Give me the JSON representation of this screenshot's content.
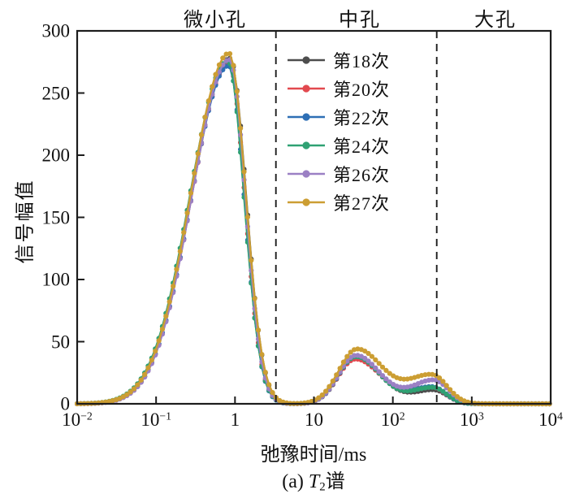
{
  "figure": {
    "region_labels": [
      {
        "label": "微小孔"
      },
      {
        "label": "中孔"
      },
      {
        "label": "大孔"
      }
    ],
    "y_axis_label": "信号幅值",
    "x_axis_label": "弛豫时间/ms",
    "caption": {
      "pre": "(a) ",
      "var": "T",
      "sub": "2",
      "post": "谱"
    }
  },
  "chart_data": {
    "type": "line",
    "title": "",
    "xlabel": "弛豫时间/ms",
    "ylabel": "信号幅值",
    "x_axis": {
      "scale": "log",
      "unit": "ms",
      "min": 0.01,
      "max": 10000,
      "tick_labels": [
        "10^-2",
        "10^-1",
        "1",
        "10",
        "10^2",
        "10^3",
        "10^4"
      ]
    },
    "y_axis": {
      "min": 0,
      "max": 300,
      "ticks": [
        0,
        50,
        100,
        150,
        200,
        250,
        300
      ]
    },
    "grid": false,
    "legend_position": "upper-center-between-boundaries",
    "pore_region_boundaries_ms": [
      3.3,
      360
    ],
    "boundary_line_style": "black-dashed-vertical",
    "marker": "filled-circle",
    "series": [
      {
        "name": "第18次",
        "color": "#4d4d4d",
        "peaks": [
          {
            "t2_ms": 0.86,
            "amplitude": 278,
            "sigma_left": 0.48,
            "sigma_right": 0.205
          },
          {
            "t2_ms": 34,
            "amplitude": 37,
            "sigma_left": 0.22,
            "sigma_right": 0.32
          },
          {
            "t2_ms": 331,
            "amplitude": 11,
            "sigma_left": 0.26,
            "sigma_right": 0.17
          }
        ]
      },
      {
        "name": "第20次",
        "color": "#e2494f",
        "peaks": [
          {
            "t2_ms": 0.84,
            "amplitude": 274,
            "sigma_left": 0.475,
            "sigma_right": 0.2
          },
          {
            "t2_ms": 33.5,
            "amplitude": 36,
            "sigma_left": 0.22,
            "sigma_right": 0.33
          },
          {
            "t2_ms": 316,
            "amplitude": 13,
            "sigma_left": 0.27,
            "sigma_right": 0.17
          }
        ]
      },
      {
        "name": "第22次",
        "color": "#2e6fb5",
        "peaks": [
          {
            "t2_ms": 0.83,
            "amplitude": 272,
            "sigma_left": 0.475,
            "sigma_right": 0.2
          },
          {
            "t2_ms": 34,
            "amplitude": 38,
            "sigma_left": 0.22,
            "sigma_right": 0.31
          },
          {
            "t2_ms": 316,
            "amplitude": 13.5,
            "sigma_left": 0.27,
            "sigma_right": 0.17
          }
        ]
      },
      {
        "name": "第24次",
        "color": "#2fa173",
        "peaks": [
          {
            "t2_ms": 0.81,
            "amplitude": 276,
            "sigma_left": 0.48,
            "sigma_right": 0.205
          },
          {
            "t2_ms": 34,
            "amplitude": 38,
            "sigma_left": 0.225,
            "sigma_right": 0.31
          },
          {
            "t2_ms": 324,
            "amplitude": 13,
            "sigma_left": 0.27,
            "sigma_right": 0.17
          }
        ]
      },
      {
        "name": "第26次",
        "color": "#9b80c4",
        "peaks": [
          {
            "t2_ms": 0.85,
            "amplitude": 277,
            "sigma_left": 0.475,
            "sigma_right": 0.2
          },
          {
            "t2_ms": 34,
            "amplitude": 39,
            "sigma_left": 0.22,
            "sigma_right": 0.31
          },
          {
            "t2_ms": 331,
            "amplitude": 19,
            "sigma_left": 0.28,
            "sigma_right": 0.18
          }
        ]
      },
      {
        "name": "第27次",
        "color": "#cc9e33",
        "peaks": [
          {
            "t2_ms": 0.84,
            "amplitude": 282,
            "sigma_left": 0.48,
            "sigma_right": 0.21
          },
          {
            "t2_ms": 35,
            "amplitude": 44,
            "sigma_left": 0.23,
            "sigma_right": 0.33
          },
          {
            "t2_ms": 316,
            "amplitude": 23,
            "sigma_left": 0.3,
            "sigma_right": 0.19
          }
        ]
      }
    ]
  }
}
